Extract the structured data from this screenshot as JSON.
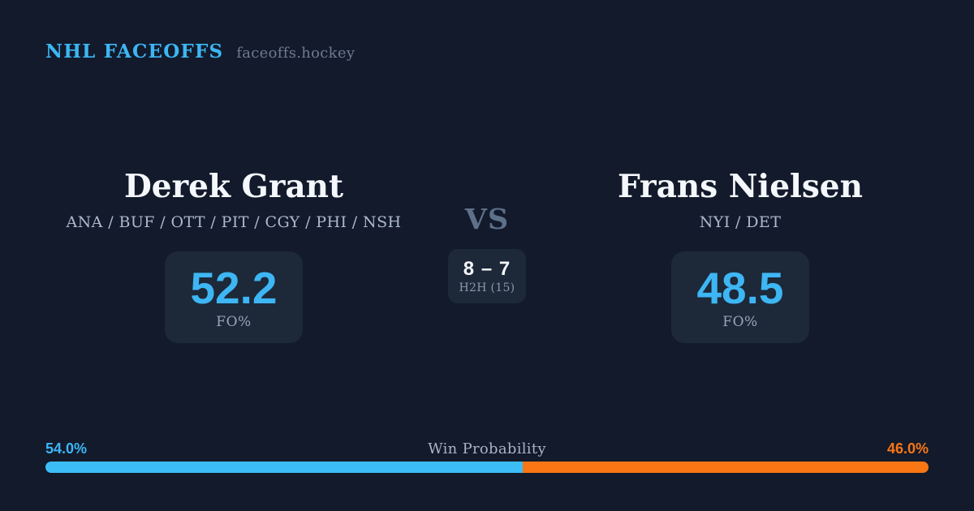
{
  "header": {
    "title": "NHL FACEOFFS",
    "site": "faceoffs.hockey"
  },
  "matchup": {
    "vs_label": "VS",
    "h2h": {
      "score": "8 – 7",
      "label": "H2H (15)"
    },
    "players": [
      {
        "name": "Derek Grant",
        "teams": "ANA / BUF / OTT / PIT / CGY / PHI / NSH",
        "fo_pct": "52.2",
        "stat_label": "FO%"
      },
      {
        "name": "Frans Nielsen",
        "teams": "NYI / DET",
        "fo_pct": "48.5",
        "stat_label": "FO%"
      }
    ]
  },
  "win_probability": {
    "label": "Win Probability",
    "left_pct": "54.0%",
    "right_pct": "46.0%",
    "left_value": 54.0,
    "right_value": 46.0
  },
  "colors": {
    "background": "#121a2b",
    "card": "#1d2838",
    "accent-blue": "#3db6f3",
    "bar-blue": "#3dbdf8",
    "accent-orange": "#f87614"
  }
}
